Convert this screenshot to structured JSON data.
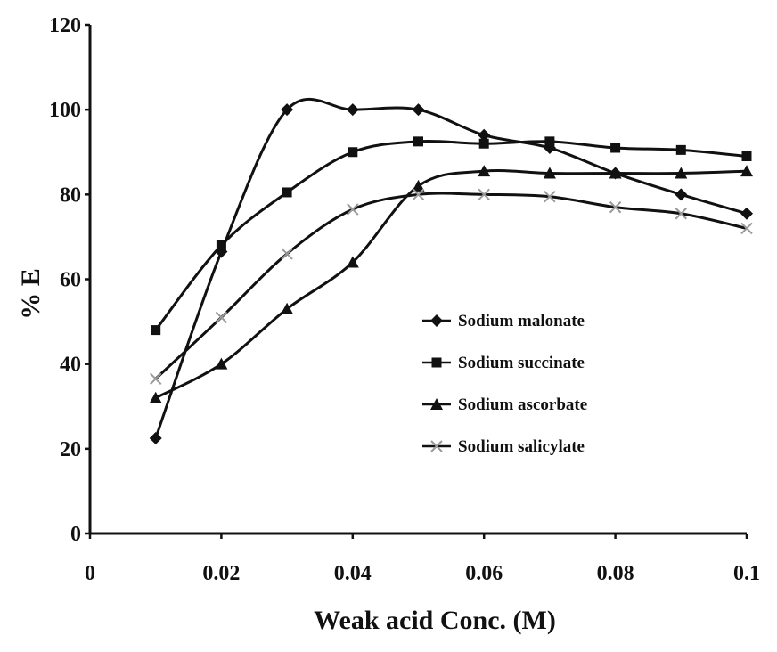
{
  "chart_data": {
    "type": "line",
    "title": "",
    "xlabel": "Weak acid Conc. (M)",
    "ylabel": "% E",
    "xlim": [
      0,
      0.1
    ],
    "ylim": [
      0,
      120
    ],
    "x_ticks": [
      0,
      0.02,
      0.04,
      0.06,
      0.08,
      0.1
    ],
    "x_tick_labels": [
      "0",
      "0.02",
      "0.04",
      "0.06",
      "0.08",
      "0.1"
    ],
    "y_ticks": [
      0,
      20,
      40,
      60,
      80,
      100,
      120
    ],
    "y_tick_labels": [
      "0",
      "20",
      "40",
      "60",
      "80",
      "100",
      "120"
    ],
    "grid": false,
    "legend_position": "right-center",
    "x": [
      0.01,
      0.02,
      0.03,
      0.04,
      0.05,
      0.06,
      0.07,
      0.08,
      0.09,
      0.1
    ],
    "series": [
      {
        "name": "Sodium malonate",
        "marker": "diamond",
        "values": [
          22.5,
          66.5,
          100,
          100,
          100,
          94,
          91,
          85,
          80,
          75.5
        ]
      },
      {
        "name": "Sodium succinate",
        "marker": "square",
        "values": [
          48,
          68,
          80.5,
          90,
          92.5,
          92,
          92.5,
          91,
          90.5,
          89
        ]
      },
      {
        "name": "Sodium ascorbate",
        "marker": "triangle",
        "values": [
          32,
          40,
          53,
          64,
          82,
          85.5,
          85,
          85,
          85,
          85.5
        ]
      },
      {
        "name": "Sodium salicylate",
        "marker": "x",
        "values": [
          36.5,
          51,
          66,
          76.5,
          80,
          80,
          79.5,
          77,
          75.5,
          72
        ]
      }
    ],
    "line_color": "#111111",
    "salicylate_marker_color": "#9a9a9a"
  }
}
